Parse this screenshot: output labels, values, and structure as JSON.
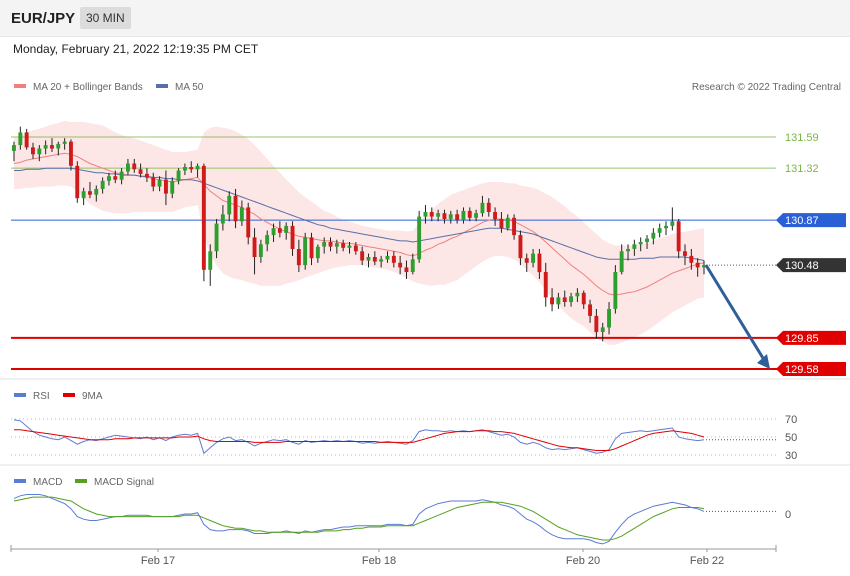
{
  "header": {
    "pair": "EUR/JPY",
    "timeframe": "30 MIN",
    "timestamp": "Monday, February 21, 2022 12:19:35 PM CET"
  },
  "legend": {
    "ma20_bb": "MA 20 + Bollinger Bands",
    "ma50": "MA 50",
    "credit": "Research © 2022 Trading Central"
  },
  "colors": {
    "up": "#2e9e2e",
    "down": "#d11a1a",
    "ma20": "#f08080",
    "ma50": "#5a6fa8",
    "band": "#fde3e3",
    "resistance": "#7ab648",
    "pivot": "#2a5fd6",
    "support": "#e00000",
    "current": "#333333",
    "arrow": "#2f5f99",
    "rsi": "#5b7bd5",
    "rsi_ma": "#e00000",
    "macd": "#5b7bd5",
    "macd_signal": "#55a020"
  },
  "levels": [
    {
      "value": "131.59",
      "kind": "resistance"
    },
    {
      "value": "131.32",
      "kind": "resistance"
    },
    {
      "value": "130.87",
      "kind": "pivot"
    },
    {
      "value": "130.48",
      "kind": "current"
    },
    {
      "value": "129.85",
      "kind": "support"
    },
    {
      "value": "129.58",
      "kind": "support"
    }
  ],
  "rsi_panel": {
    "legend_rsi": "RSI",
    "legend_ma": "9MA",
    "ticks": [
      "70",
      "50",
      "30"
    ]
  },
  "macd_panel": {
    "legend_macd": "MACD",
    "legend_signal": "MACD Signal",
    "ticks": [
      "0"
    ]
  },
  "x_axis": {
    "labels": [
      "Feb 17",
      "Feb 18",
      "Feb 20",
      "Feb 22"
    ]
  },
  "chart_data": {
    "type": "candlestick",
    "ylim": [
      129.5,
      131.9
    ],
    "arrow": {
      "from": 130.48,
      "to": 129.58
    },
    "candles": [
      [
        131.47,
        131.55,
        131.38,
        131.52
      ],
      [
        131.52,
        131.68,
        131.48,
        131.63
      ],
      [
        131.63,
        131.66,
        131.48,
        131.5
      ],
      [
        131.5,
        131.54,
        131.4,
        131.44
      ],
      [
        131.44,
        131.52,
        131.38,
        131.49
      ],
      [
        131.49,
        131.56,
        131.44,
        131.52
      ],
      [
        131.52,
        131.58,
        131.46,
        131.49
      ],
      [
        131.49,
        131.55,
        131.43,
        131.53
      ],
      [
        131.53,
        131.58,
        131.48,
        131.55
      ],
      [
        131.55,
        131.57,
        131.3,
        131.34
      ],
      [
        131.34,
        131.38,
        131.02,
        131.06
      ],
      [
        131.06,
        131.15,
        131.0,
        131.12
      ],
      [
        131.12,
        131.2,
        131.06,
        131.09
      ],
      [
        131.09,
        131.17,
        131.03,
        131.14
      ],
      [
        131.14,
        131.24,
        131.1,
        131.21
      ],
      [
        131.21,
        131.28,
        131.17,
        131.25
      ],
      [
        131.25,
        131.3,
        131.19,
        131.22
      ],
      [
        131.22,
        131.32,
        131.18,
        131.29
      ],
      [
        131.29,
        131.4,
        131.26,
        131.36
      ],
      [
        131.36,
        131.4,
        131.28,
        131.31
      ],
      [
        131.31,
        131.36,
        131.24,
        131.27
      ],
      [
        131.27,
        131.32,
        131.2,
        131.24
      ],
      [
        131.24,
        131.28,
        131.12,
        131.16
      ],
      [
        131.16,
        131.25,
        131.12,
        131.22
      ],
      [
        131.22,
        131.3,
        131.0,
        131.1
      ],
      [
        131.1,
        131.24,
        131.06,
        131.21
      ],
      [
        131.21,
        131.32,
        131.18,
        131.3
      ],
      [
        131.3,
        131.36,
        131.26,
        131.33
      ],
      [
        131.33,
        131.38,
        131.28,
        131.31
      ],
      [
        131.31,
        131.36,
        131.24,
        131.34
      ],
      [
        131.34,
        131.36,
        130.34,
        130.44
      ],
      [
        130.44,
        130.66,
        130.3,
        130.6
      ],
      [
        130.6,
        130.88,
        130.54,
        130.84
      ],
      [
        130.84,
        131.0,
        130.78,
        130.92
      ],
      [
        130.92,
        131.12,
        130.86,
        131.08
      ],
      [
        131.08,
        131.14,
        130.8,
        130.86
      ],
      [
        130.86,
        131.04,
        130.82,
        130.98
      ],
      [
        130.98,
        131.02,
        130.66,
        130.72
      ],
      [
        130.72,
        130.8,
        130.4,
        130.55
      ],
      [
        130.55,
        130.7,
        130.5,
        130.66
      ],
      [
        130.66,
        130.78,
        130.6,
        130.74
      ],
      [
        130.74,
        130.84,
        130.68,
        130.8
      ],
      [
        130.8,
        130.86,
        130.72,
        130.76
      ],
      [
        130.76,
        130.85,
        130.7,
        130.82
      ],
      [
        130.82,
        130.86,
        130.56,
        130.62
      ],
      [
        130.62,
        130.7,
        130.42,
        130.48
      ],
      [
        130.48,
        130.76,
        130.44,
        130.72
      ],
      [
        130.72,
        130.76,
        130.48,
        130.54
      ],
      [
        130.54,
        130.66,
        130.5,
        130.64
      ],
      [
        130.64,
        130.72,
        130.58,
        130.68
      ],
      [
        130.68,
        130.72,
        130.6,
        130.64
      ],
      [
        130.64,
        130.7,
        130.58,
        130.67
      ],
      [
        130.67,
        130.7,
        130.6,
        130.63
      ],
      [
        130.63,
        130.68,
        130.58,
        130.65
      ],
      [
        130.65,
        130.68,
        130.57,
        130.6
      ],
      [
        130.6,
        130.64,
        130.48,
        130.52
      ],
      [
        130.52,
        130.58,
        130.46,
        130.55
      ],
      [
        130.55,
        130.6,
        130.48,
        130.51
      ],
      [
        130.51,
        130.56,
        130.46,
        130.53
      ],
      [
        130.53,
        130.6,
        130.5,
        130.56
      ],
      [
        130.56,
        130.6,
        130.46,
        130.5
      ],
      [
        130.5,
        130.56,
        130.4,
        130.46
      ],
      [
        130.46,
        130.52,
        130.36,
        130.42
      ],
      [
        130.42,
        130.58,
        130.4,
        130.53
      ],
      [
        130.53,
        130.95,
        130.5,
        130.9
      ],
      [
        130.9,
        131.0,
        130.84,
        130.94
      ],
      [
        130.94,
        130.98,
        130.86,
        130.9
      ],
      [
        130.9,
        130.96,
        130.86,
        130.93
      ],
      [
        130.93,
        130.96,
        130.84,
        130.88
      ],
      [
        130.88,
        130.95,
        130.84,
        130.92
      ],
      [
        130.92,
        130.96,
        130.84,
        130.87
      ],
      [
        130.87,
        130.98,
        130.84,
        130.95
      ],
      [
        130.95,
        130.98,
        130.86,
        130.89
      ],
      [
        130.89,
        130.96,
        130.86,
        130.93
      ],
      [
        130.93,
        131.08,
        130.9,
        131.02
      ],
      [
        131.02,
        131.06,
        130.9,
        130.94
      ],
      [
        130.94,
        130.98,
        130.82,
        130.88
      ],
      [
        130.88,
        130.94,
        130.76,
        130.8
      ],
      [
        130.8,
        130.92,
        130.78,
        130.89
      ],
      [
        130.89,
        130.92,
        130.7,
        130.74
      ],
      [
        130.74,
        130.78,
        130.48,
        130.54
      ],
      [
        130.54,
        130.58,
        130.42,
        130.5
      ],
      [
        130.5,
        130.62,
        130.46,
        130.58
      ],
      [
        130.58,
        130.62,
        130.36,
        130.42
      ],
      [
        130.42,
        130.5,
        130.12,
        130.2
      ],
      [
        130.2,
        130.28,
        130.08,
        130.14
      ],
      [
        130.14,
        130.24,
        130.1,
        130.2
      ],
      [
        130.2,
        130.26,
        130.12,
        130.16
      ],
      [
        130.16,
        130.24,
        130.12,
        130.21
      ],
      [
        130.21,
        130.28,
        130.16,
        130.24
      ],
      [
        130.24,
        130.26,
        130.1,
        130.14
      ],
      [
        130.14,
        130.18,
        129.98,
        130.04
      ],
      [
        130.04,
        130.1,
        129.84,
        129.9
      ],
      [
        129.9,
        129.98,
        129.82,
        129.94
      ],
      [
        129.94,
        130.16,
        129.88,
        130.1
      ],
      [
        130.1,
        130.48,
        130.06,
        130.42
      ],
      [
        130.42,
        130.66,
        130.4,
        130.6
      ],
      [
        130.6,
        130.66,
        130.52,
        130.62
      ],
      [
        130.62,
        130.7,
        130.56,
        130.66
      ],
      [
        130.66,
        130.72,
        130.6,
        130.68
      ],
      [
        130.68,
        130.74,
        130.62,
        130.71
      ],
      [
        130.71,
        130.8,
        130.66,
        130.76
      ],
      [
        130.76,
        130.84,
        130.72,
        130.8
      ],
      [
        130.8,
        130.86,
        130.74,
        130.82
      ],
      [
        130.82,
        130.98,
        130.78,
        130.86
      ],
      [
        130.86,
        130.88,
        130.54,
        130.6
      ],
      [
        130.6,
        130.66,
        130.48,
        130.56
      ],
      [
        130.56,
        130.62,
        130.44,
        130.5
      ],
      [
        130.5,
        130.54,
        130.38,
        130.46
      ],
      [
        130.46,
        130.52,
        130.4,
        130.48
      ]
    ],
    "ma20": [
      131.36,
      131.37,
      131.39,
      131.4,
      131.41,
      131.42,
      131.43,
      131.44,
      131.45,
      131.44,
      131.42,
      131.39,
      131.36,
      131.34,
      131.32,
      131.3,
      131.28,
      131.27,
      131.26,
      131.26,
      131.25,
      131.24,
      131.23,
      131.22,
      131.21,
      131.2,
      131.21,
      131.22,
      131.23,
      131.24,
      131.18,
      131.12,
      131.08,
      131.04,
      131.02,
      131.0,
      130.98,
      130.95,
      130.92,
      130.88,
      130.85,
      130.82,
      130.79,
      130.77,
      130.75,
      130.73,
      130.72,
      130.71,
      130.7,
      130.69,
      130.69,
      130.68,
      130.67,
      130.67,
      130.66,
      130.65,
      130.64,
      130.63,
      130.62,
      130.61,
      130.6,
      130.59,
      130.57,
      130.56,
      130.58,
      130.61,
      130.63,
      130.66,
      130.68,
      130.71,
      130.73,
      130.76,
      130.79,
      130.82,
      130.85,
      130.87,
      130.88,
      130.88,
      130.87,
      130.86,
      130.83,
      130.8,
      130.77,
      130.73,
      130.68,
      130.63,
      130.58,
      130.53,
      130.48,
      130.44,
      130.4,
      130.35,
      130.3,
      130.26,
      130.23,
      130.22,
      130.23,
      130.24,
      130.25,
      130.27,
      130.29,
      130.32,
      130.35,
      130.38,
      130.41,
      130.43,
      130.45,
      130.47,
      130.49,
      130.5
    ],
    "ma50": [
      131.3,
      131.3,
      131.31,
      131.31,
      131.31,
      131.32,
      131.32,
      131.32,
      131.32,
      131.32,
      131.31,
      131.3,
      131.29,
      131.28,
      131.28,
      131.27,
      131.27,
      131.26,
      131.26,
      131.26,
      131.25,
      131.25,
      131.24,
      131.24,
      131.23,
      131.23,
      131.22,
      131.22,
      131.22,
      131.21,
      131.19,
      131.17,
      131.15,
      131.13,
      131.11,
      131.09,
      131.07,
      131.05,
      131.03,
      131.01,
      130.99,
      130.97,
      130.95,
      130.93,
      130.91,
      130.89,
      130.87,
      130.85,
      130.83,
      130.82,
      130.8,
      130.79,
      130.78,
      130.77,
      130.76,
      130.75,
      130.74,
      130.73,
      130.72,
      130.71,
      130.7,
      130.69,
      130.69,
      130.68,
      130.69,
      130.7,
      130.71,
      130.72,
      130.73,
      130.74,
      130.75,
      130.76,
      130.77,
      130.78,
      130.79,
      130.8,
      130.8,
      130.8,
      130.79,
      130.78,
      130.77,
      130.76,
      130.75,
      130.73,
      130.71,
      130.69,
      130.67,
      130.65,
      130.63,
      130.61,
      130.59,
      130.57,
      130.55,
      130.54,
      130.53,
      130.53,
      130.53,
      130.53,
      130.53,
      130.54,
      130.54,
      130.54,
      130.55,
      130.55,
      130.55,
      130.55,
      130.55,
      130.54,
      130.53,
      130.52
    ],
    "band_width": [
      0.22,
      0.23,
      0.24,
      0.25,
      0.25,
      0.26,
      0.27,
      0.27,
      0.28,
      0.28,
      0.3,
      0.33,
      0.35,
      0.36,
      0.37,
      0.36,
      0.35,
      0.34,
      0.33,
      0.32,
      0.31,
      0.3,
      0.29,
      0.28,
      0.27,
      0.26,
      0.25,
      0.24,
      0.24,
      0.24,
      0.45,
      0.55,
      0.6,
      0.63,
      0.64,
      0.64,
      0.63,
      0.62,
      0.6,
      0.58,
      0.55,
      0.52,
      0.49,
      0.45,
      0.42,
      0.38,
      0.35,
      0.32,
      0.29,
      0.26,
      0.24,
      0.22,
      0.2,
      0.19,
      0.18,
      0.17,
      0.17,
      0.17,
      0.17,
      0.17,
      0.18,
      0.19,
      0.2,
      0.22,
      0.26,
      0.3,
      0.33,
      0.35,
      0.37,
      0.38,
      0.38,
      0.37,
      0.36,
      0.35,
      0.34,
      0.33,
      0.32,
      0.32,
      0.32,
      0.33,
      0.34,
      0.36,
      0.38,
      0.4,
      0.42,
      0.44,
      0.45,
      0.46,
      0.46,
      0.46,
      0.45,
      0.45,
      0.45,
      0.44,
      0.44,
      0.43,
      0.42,
      0.41,
      0.4,
      0.39,
      0.38,
      0.37,
      0.36,
      0.35,
      0.34,
      0.33,
      0.32,
      0.31,
      0.3,
      0.3
    ],
    "rsi": [
      69,
      68,
      62,
      56,
      52,
      50,
      48,
      47,
      50,
      46,
      42,
      45,
      47,
      46,
      48,
      50,
      52,
      51,
      50,
      49,
      48,
      50,
      47,
      49,
      46,
      50,
      52,
      53,
      52,
      54,
      32,
      38,
      44,
      48,
      50,
      46,
      47,
      44,
      40,
      43,
      45,
      47,
      46,
      47,
      44,
      42,
      46,
      44,
      45,
      46,
      45,
      46,
      45,
      46,
      45,
      43,
      44,
      43,
      44,
      45,
      44,
      43,
      42,
      46,
      56,
      58,
      57,
      57,
      56,
      57,
      56,
      57,
      56,
      57,
      58,
      56,
      54,
      52,
      53,
      50,
      44,
      42,
      44,
      42,
      38,
      36,
      37,
      36,
      37,
      38,
      36,
      34,
      32,
      33,
      36,
      48,
      54,
      55,
      56,
      57,
      56,
      57,
      58,
      59,
      60,
      50,
      48,
      47,
      46,
      47
    ],
    "rsi_ma": [
      58,
      58,
      57,
      56,
      55,
      54,
      53,
      52,
      51,
      50,
      49,
      48,
      47,
      47,
      47,
      47,
      48,
      48,
      48,
      49,
      49,
      49,
      49,
      49,
      49,
      49,
      50,
      50,
      50,
      51,
      48,
      46,
      45,
      45,
      45,
      45,
      45,
      45,
      44,
      44,
      44,
      44,
      44,
      45,
      45,
      45,
      45,
      45,
      45,
      45,
      45,
      45,
      45,
      45,
      45,
      45,
      45,
      45,
      44,
      44,
      44,
      44,
      44,
      44,
      46,
      48,
      50,
      52,
      54,
      55,
      56,
      56,
      56,
      57,
      57,
      57,
      56,
      56,
      55,
      54,
      52,
      50,
      48,
      46,
      44,
      42,
      40,
      39,
      38,
      38,
      37,
      36,
      35,
      35,
      35,
      37,
      40,
      43,
      46,
      49,
      52,
      54,
      55,
      56,
      57,
      56,
      55,
      54,
      52,
      50
    ],
    "macd": [
      0.12,
      0.14,
      0.15,
      0.15,
      0.15,
      0.14,
      0.12,
      0.1,
      0.08,
      0.04,
      -0.02,
      -0.04,
      -0.05,
      -0.05,
      -0.04,
      -0.03,
      -0.02,
      -0.02,
      -0.01,
      -0.01,
      -0.01,
      -0.01,
      -0.02,
      -0.02,
      -0.02,
      -0.02,
      -0.01,
      0.0,
      0.0,
      0.01,
      -0.08,
      -0.12,
      -0.13,
      -0.13,
      -0.12,
      -0.12,
      -0.12,
      -0.13,
      -0.15,
      -0.15,
      -0.15,
      -0.14,
      -0.14,
      -0.13,
      -0.14,
      -0.15,
      -0.13,
      -0.14,
      -0.13,
      -0.12,
      -0.12,
      -0.11,
      -0.1,
      -0.1,
      -0.09,
      -0.09,
      -0.09,
      -0.09,
      -0.09,
      -0.08,
      -0.08,
      -0.08,
      -0.09,
      -0.08,
      0.0,
      0.04,
      0.06,
      0.08,
      0.09,
      0.1,
      0.1,
      0.1,
      0.1,
      0.1,
      0.11,
      0.1,
      0.09,
      0.07,
      0.06,
      0.04,
      0.0,
      -0.04,
      -0.06,
      -0.09,
      -0.13,
      -0.16,
      -0.18,
      -0.19,
      -0.19,
      -0.19,
      -0.19,
      -0.2,
      -0.22,
      -0.23,
      -0.21,
      -0.14,
      -0.08,
      -0.03,
      0.0,
      0.02,
      0.04,
      0.06,
      0.07,
      0.08,
      0.09,
      0.08,
      0.07,
      0.05,
      0.04,
      0.02
    ],
    "macd_signal": [
      0.1,
      0.11,
      0.12,
      0.13,
      0.13,
      0.13,
      0.13,
      0.12,
      0.11,
      0.1,
      0.07,
      0.04,
      0.02,
      0.0,
      -0.01,
      -0.02,
      -0.02,
      -0.02,
      -0.02,
      -0.02,
      -0.02,
      -0.02,
      -0.02,
      -0.02,
      -0.02,
      -0.02,
      -0.02,
      -0.01,
      -0.01,
      -0.01,
      -0.03,
      -0.05,
      -0.07,
      -0.09,
      -0.1,
      -0.11,
      -0.11,
      -0.12,
      -0.13,
      -0.13,
      -0.14,
      -0.14,
      -0.14,
      -0.14,
      -0.14,
      -0.14,
      -0.14,
      -0.14,
      -0.14,
      -0.13,
      -0.13,
      -0.13,
      -0.12,
      -0.12,
      -0.11,
      -0.11,
      -0.1,
      -0.1,
      -0.1,
      -0.09,
      -0.09,
      -0.09,
      -0.09,
      -0.09,
      -0.07,
      -0.05,
      -0.03,
      -0.01,
      0.01,
      0.03,
      0.05,
      0.06,
      0.07,
      0.08,
      0.09,
      0.09,
      0.09,
      0.09,
      0.08,
      0.07,
      0.06,
      0.04,
      0.02,
      -0.01,
      -0.04,
      -0.07,
      -0.1,
      -0.12,
      -0.14,
      -0.16,
      -0.17,
      -0.18,
      -0.19,
      -0.2,
      -0.2,
      -0.19,
      -0.17,
      -0.14,
      -0.11,
      -0.08,
      -0.05,
      -0.02,
      0.0,
      0.02,
      0.04,
      0.05,
      0.05,
      0.05,
      0.05,
      0.04
    ]
  }
}
